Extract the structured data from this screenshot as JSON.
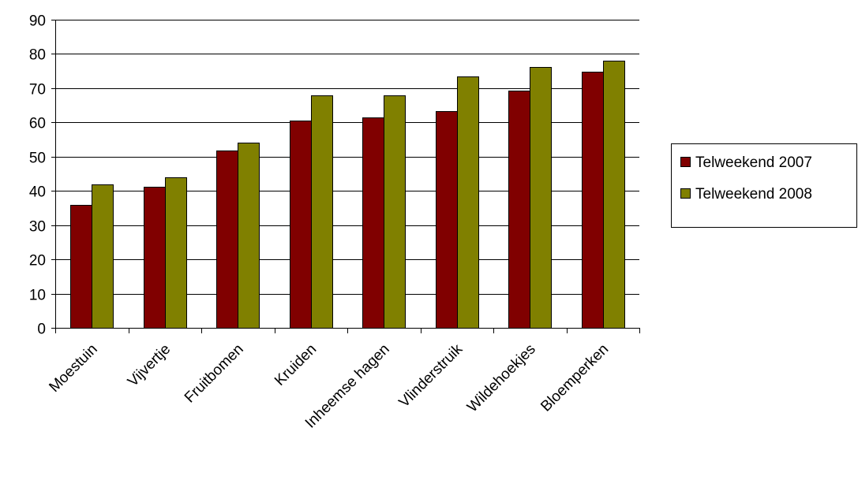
{
  "chart_data": {
    "type": "bar",
    "categories": [
      "Moestuin",
      "Vijvertje",
      "Fruitbomen",
      "Kruiden",
      "Inheemse hagen",
      "Vlinderstruik",
      "Wildehoekjes",
      "Bloemperken"
    ],
    "series": [
      {
        "name": "Telweekend 2007",
        "color": "#800000",
        "values": [
          35.8,
          41.3,
          51.8,
          60.5,
          61.5,
          63.3,
          69.3,
          74.8
        ]
      },
      {
        "name": "Telweekend 2008",
        "color": "#808000",
        "values": [
          41.8,
          44.0,
          54.2,
          68.0,
          68.0,
          73.5,
          76.3,
          78.0
        ]
      }
    ],
    "yticks": [
      "0",
      "10",
      "20",
      "30",
      "40",
      "50",
      "60",
      "70",
      "80",
      "90"
    ],
    "ylim": [
      0,
      90
    ],
    "grid": true,
    "legend_position": "right",
    "title": "",
    "xlabel": "",
    "ylabel": ""
  }
}
